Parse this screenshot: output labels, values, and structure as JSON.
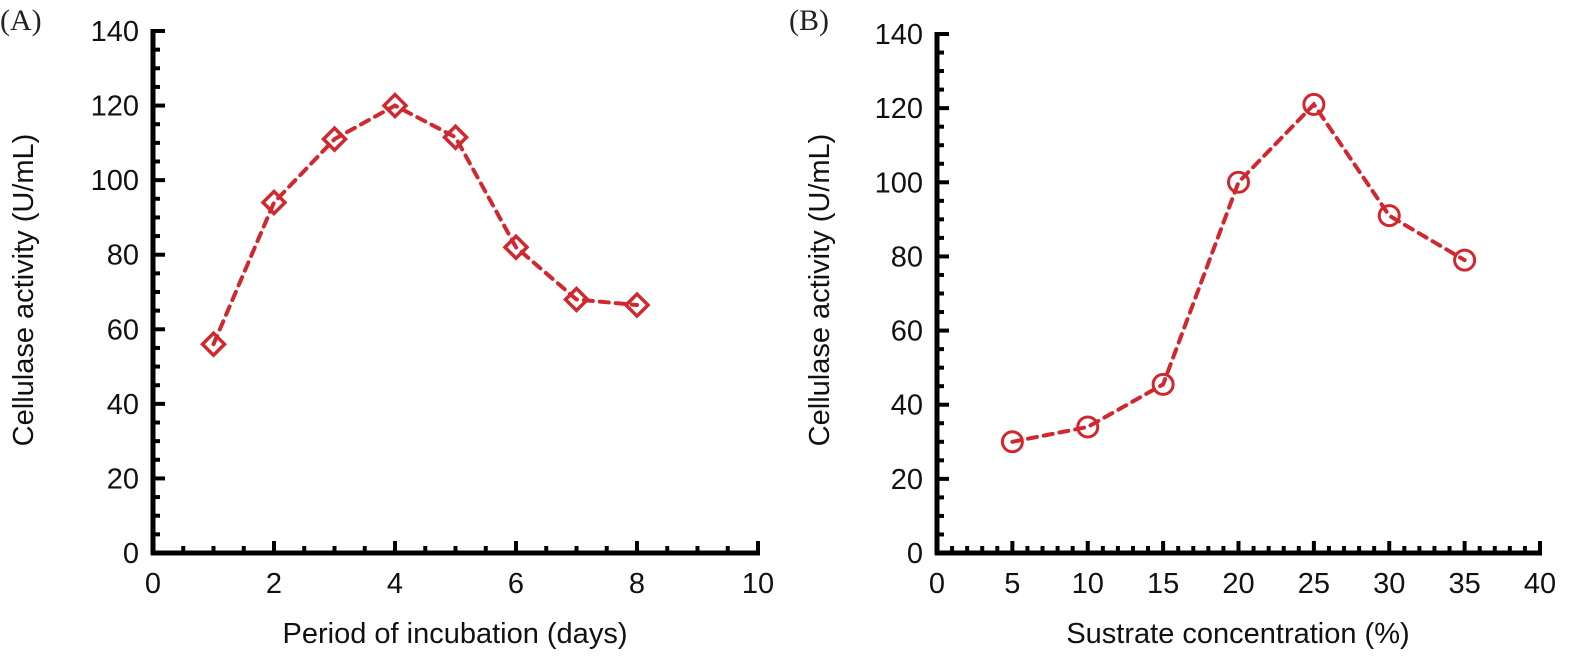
{
  "chart_data": [
    {
      "type": "line",
      "panel_label": "(A)",
      "title": "",
      "xlabel": "Period of incubation (days)",
      "ylabel": "Cellulase activity (U/mL)",
      "xlim": [
        0,
        10
      ],
      "ylim": [
        0,
        140
      ],
      "x_major_ticks": [
        0,
        2,
        4,
        6,
        8,
        10
      ],
      "x_minor_step": 0.5,
      "y_major_ticks": [
        0,
        20,
        40,
        60,
        80,
        100,
        120,
        140
      ],
      "y_minor_step": 5,
      "grid": false,
      "marker": "diamond-open",
      "line_style": "dashed",
      "color": "#d0282e",
      "series": [
        {
          "name": "Cellulase activity",
          "x": [
            1,
            2,
            3,
            4,
            5,
            6,
            7,
            8
          ],
          "values": [
            56,
            94,
            111,
            120,
            111.5,
            82,
            68,
            66.5
          ]
        }
      ]
    },
    {
      "type": "line",
      "panel_label": "(B)",
      "title": "",
      "xlabel": "Sustrate concentration (%)",
      "ylabel": "Cellulase activity (U/mL)",
      "xlim": [
        0,
        40
      ],
      "ylim": [
        0,
        140
      ],
      "x_major_ticks": [
        0,
        5,
        10,
        15,
        20,
        25,
        30,
        35,
        40
      ],
      "x_minor_step": 1,
      "y_major_ticks": [
        0,
        20,
        40,
        60,
        80,
        100,
        120,
        140
      ],
      "y_minor_step": 5,
      "grid": false,
      "marker": "circle-open",
      "line_style": "dashed",
      "color": "#d0282e",
      "series": [
        {
          "name": "Cellulase activity",
          "x": [
            5,
            10,
            15,
            20,
            25,
            30,
            35
          ],
          "values": [
            30,
            34,
            45.5,
            100,
            121,
            91,
            79
          ]
        }
      ]
    }
  ]
}
